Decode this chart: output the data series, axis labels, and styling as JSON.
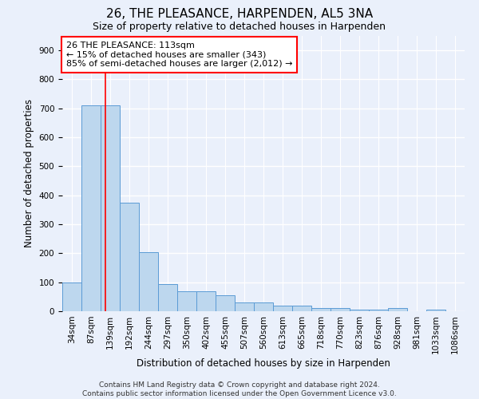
{
  "title": "26, THE PLEASANCE, HARPENDEN, AL5 3NA",
  "subtitle": "Size of property relative to detached houses in Harpenden",
  "xlabel": "Distribution of detached houses by size in Harpenden",
  "ylabel": "Number of detached properties",
  "bar_labels": [
    "34sqm",
    "87sqm",
    "139sqm",
    "192sqm",
    "244sqm",
    "297sqm",
    "350sqm",
    "402sqm",
    "455sqm",
    "507sqm",
    "560sqm",
    "613sqm",
    "665sqm",
    "718sqm",
    "770sqm",
    "823sqm",
    "876sqm",
    "928sqm",
    "981sqm",
    "1033sqm",
    "1086sqm"
  ],
  "bar_values": [
    100,
    710,
    710,
    375,
    205,
    95,
    70,
    70,
    55,
    30,
    30,
    20,
    20,
    10,
    10,
    5,
    5,
    10,
    0,
    5,
    0
  ],
  "bar_color": "#BDD7EE",
  "bar_edge_color": "#5B9BD5",
  "ylim": [
    0,
    950
  ],
  "yticks": [
    0,
    100,
    200,
    300,
    400,
    500,
    600,
    700,
    800,
    900
  ],
  "red_line_x": 1.75,
  "annotation_text": "26 THE PLEASANCE: 113sqm\n← 15% of detached houses are smaller (343)\n85% of semi-detached houses are larger (2,012) →",
  "annotation_box_color": "white",
  "annotation_box_edge_color": "red",
  "footnote": "Contains HM Land Registry data © Crown copyright and database right 2024.\nContains public sector information licensed under the Open Government Licence v3.0.",
  "background_color": "#EAF0FB",
  "grid_color": "white",
  "title_fontsize": 11,
  "subtitle_fontsize": 9,
  "axis_label_fontsize": 8.5,
  "tick_fontsize": 7.5,
  "annotation_fontsize": 8,
  "footnote_fontsize": 6.5
}
